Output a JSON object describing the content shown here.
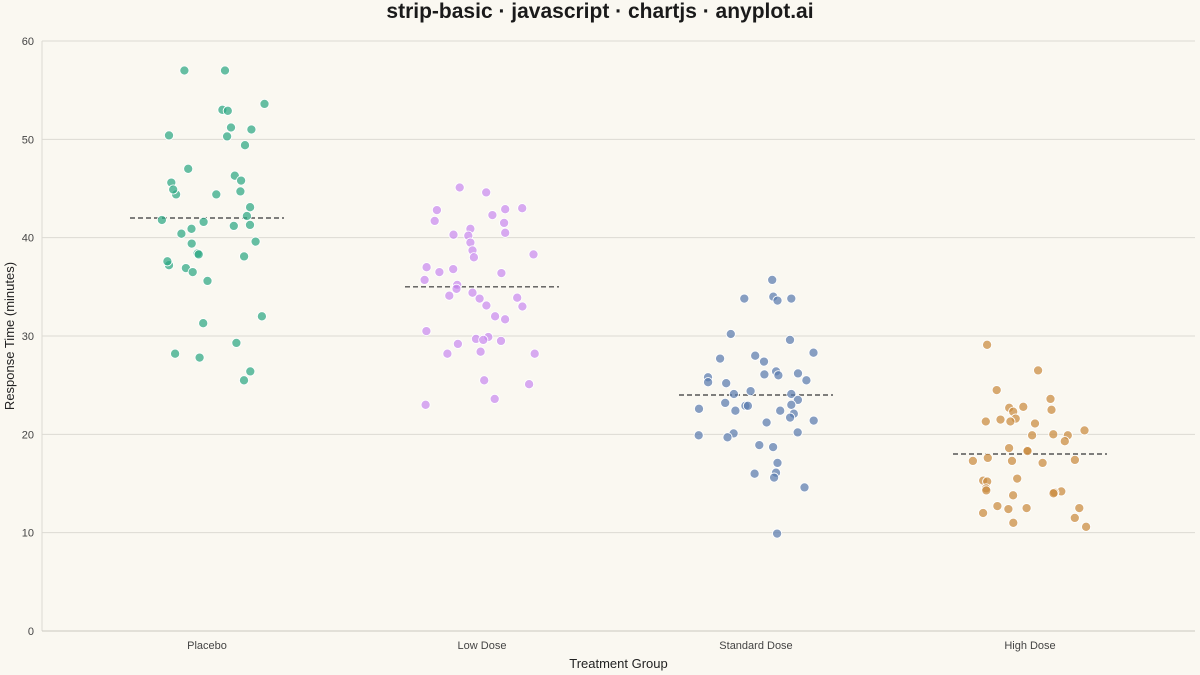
{
  "chart_data": {
    "type": "scatter",
    "title": "strip-basic · javascript · chartjs · anyplot.ai",
    "xlabel": "Treatment Group",
    "ylabel": "Response Time (minutes)",
    "categories": [
      "Placebo",
      "Low Dose",
      "Standard Dose",
      "High Dose"
    ],
    "ylim": [
      0,
      60
    ],
    "yticks": [
      0,
      10,
      20,
      30,
      40,
      50,
      60
    ],
    "grid": true,
    "legend": "none",
    "series": [
      {
        "category": "Placebo",
        "color": "#2CA784",
        "mean": 42.0,
        "values": [
          57.0,
          57.0,
          53.0,
          53.6,
          52.9,
          50.3,
          50.4,
          51.0,
          51.2,
          49.4,
          46.3,
          47.0,
          45.8,
          45.6,
          44.4,
          44.4,
          44.9,
          44.7,
          43.1,
          42.2,
          41.8,
          41.6,
          41.2,
          40.9,
          40.4,
          39.4,
          39.6,
          41.3,
          38.4,
          38.3,
          38.1,
          37.2,
          37.6,
          36.9,
          36.5,
          35.6,
          32.0,
          31.3,
          29.3,
          28.2,
          27.8,
          26.4,
          25.5
        ]
      },
      {
        "category": "Low Dose",
        "color": "#C98AF0",
        "mean": 35.0,
        "values": [
          45.1,
          44.6,
          43.0,
          42.9,
          42.8,
          42.3,
          41.7,
          41.5,
          40.9,
          40.5,
          40.3,
          40.2,
          39.5,
          38.7,
          38.3,
          38.0,
          37.0,
          36.8,
          36.5,
          36.4,
          35.7,
          35.2,
          34.8,
          34.4,
          34.1,
          33.9,
          33.8,
          33.1,
          33.0,
          32.0,
          31.7,
          30.5,
          29.9,
          29.7,
          29.6,
          29.5,
          29.2,
          28.4,
          28.2,
          28.2,
          25.5,
          25.1,
          23.6,
          23.0
        ]
      },
      {
        "category": "Standard Dose",
        "color": "#5A7BAE",
        "mean": 24.0,
        "values": [
          35.7,
          34.0,
          33.8,
          33.8,
          33.6,
          30.2,
          29.6,
          28.3,
          28.0,
          27.7,
          27.4,
          26.4,
          26.2,
          26.1,
          26.0,
          25.8,
          25.5,
          25.3,
          25.2,
          24.4,
          24.1,
          24.1,
          23.5,
          23.2,
          23.0,
          22.9,
          22.9,
          22.6,
          22.4,
          22.4,
          22.1,
          21.7,
          21.4,
          21.2,
          20.2,
          20.1,
          19.9,
          19.7,
          18.9,
          18.7,
          17.1,
          16.1,
          16.0,
          15.6,
          14.6,
          9.9
        ]
      },
      {
        "category": "High Dose",
        "color": "#C98B3E",
        "mean": 18.0,
        "values": [
          29.1,
          26.5,
          24.5,
          23.6,
          22.8,
          22.7,
          22.5,
          22.3,
          21.6,
          21.5,
          21.3,
          21.3,
          21.1,
          20.4,
          20.0,
          19.9,
          19.9,
          19.3,
          18.6,
          18.4,
          18.3,
          17.6,
          17.4,
          17.3,
          17.3,
          17.1,
          15.5,
          15.3,
          15.2,
          14.5,
          14.3,
          14.2,
          14.1,
          14.0,
          13.8,
          12.7,
          12.5,
          12.5,
          12.4,
          12.0,
          11.5,
          11.0,
          10.6
        ]
      }
    ]
  }
}
